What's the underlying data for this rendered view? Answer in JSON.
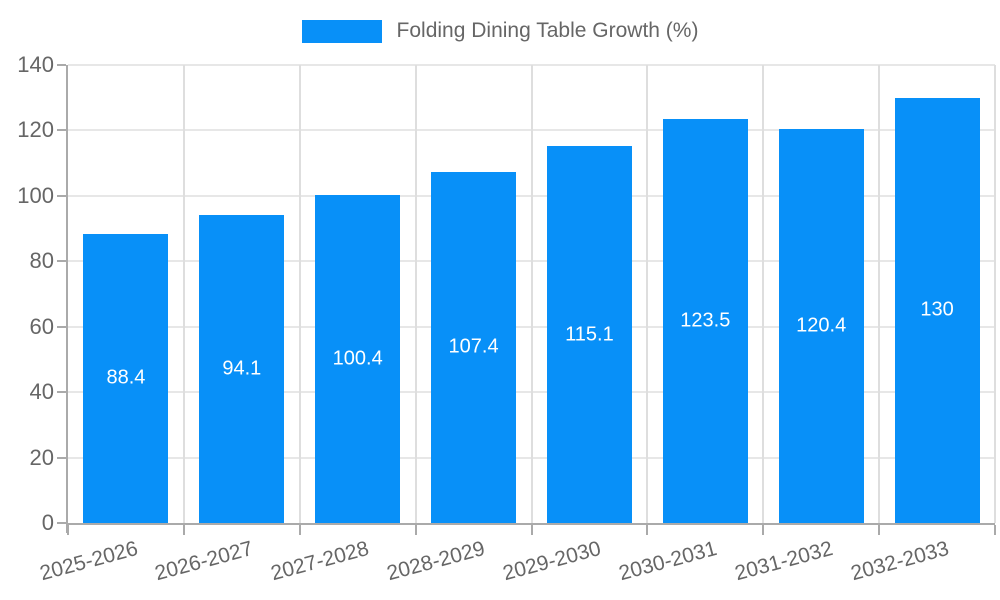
{
  "chart_data": {
    "type": "bar",
    "title": "Folding Dining Table Growth (%)",
    "legend": {
      "label": "Folding Dining Table Growth (%)",
      "position": "top-center"
    },
    "categories": [
      "2025-2026",
      "2026-2027",
      "2027-2028",
      "2028-2029",
      "2029-2030",
      "2030-2031",
      "2031-2032",
      "2032-2033"
    ],
    "series": [
      {
        "name": "Folding Dining Table Growth (%)",
        "values": [
          88.4,
          94.1,
          100.4,
          107.4,
          115.1,
          123.5,
          120.4,
          130
        ]
      }
    ],
    "value_labels": [
      "88.4",
      "94.1",
      "100.4",
      "107.4",
      "115.1",
      "123.5",
      "120.4",
      "130"
    ],
    "xlabel": "",
    "ylabel": "",
    "ylim": [
      0,
      140
    ],
    "yticks": [
      0,
      20,
      40,
      60,
      80,
      100,
      120,
      140
    ],
    "grid": true,
    "colors": {
      "bar": "#0890f8",
      "value_label": "#ffffff",
      "axis_line": "#aaaaaa",
      "tick_text": "#666666",
      "hgrid_line": "#e7e7e7",
      "vgrid_line": "#dedede",
      "background": "#ffffff"
    }
  }
}
